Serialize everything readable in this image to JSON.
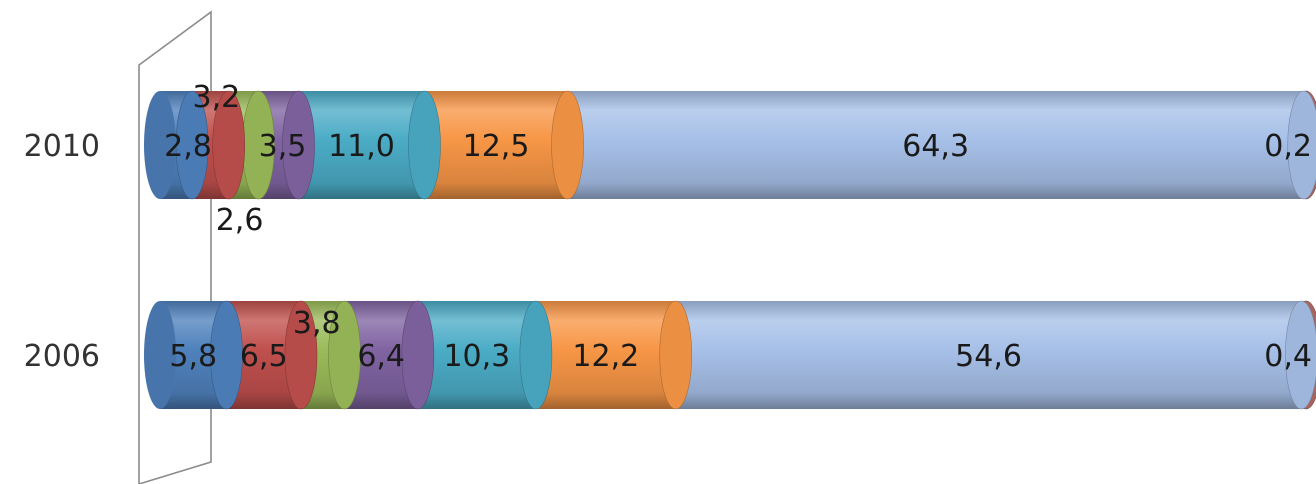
{
  "chart_data": {
    "type": "bar",
    "orientation": "horizontal",
    "stacked": true,
    "percent_stacked": true,
    "three_d": true,
    "categories": [
      "2010",
      "2006"
    ],
    "series": [
      {
        "values": [
          2.8,
          5.8
        ],
        "labels": [
          "2,8",
          "5,8"
        ],
        "color": "#4F81BD"
      },
      {
        "values": [
          3.2,
          6.5
        ],
        "labels": [
          "3,2",
          "6,5"
        ],
        "color": "#C0504D"
      },
      {
        "values": [
          2.6,
          3.8
        ],
        "labels": [
          "2,6",
          "3,8"
        ],
        "color": "#9BBB59"
      },
      {
        "values": [
          3.5,
          6.4
        ],
        "labels": [
          "3,5",
          "6,4"
        ],
        "color": "#8064A2"
      },
      {
        "values": [
          11.0,
          10.3
        ],
        "labels": [
          "11,0",
          "10,3"
        ],
        "color": "#4BACC6"
      },
      {
        "values": [
          12.5,
          12.2
        ],
        "labels": [
          "12,5",
          "12,2"
        ],
        "color": "#F79646"
      },
      {
        "values": [
          64.3,
          54.6
        ],
        "labels": [
          "64,3",
          "54,6"
        ],
        "color": "#A7C0E8"
      },
      {
        "values": [
          0.2,
          0.4
        ],
        "labels": [
          "0,2",
          "0,4"
        ],
        "color": "#B06A63"
      }
    ],
    "title": "",
    "xlabel": "",
    "ylabel": "",
    "legend": "none",
    "grid": false
  }
}
